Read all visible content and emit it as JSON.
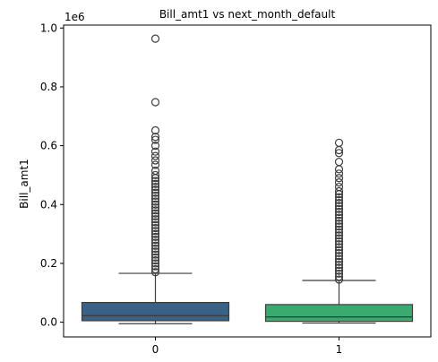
{
  "chart_data": {
    "type": "box",
    "title": "Bill_amt1 vs next_month_default",
    "xlabel": "",
    "ylabel": "Bill_amt1",
    "y_offset_label": "1e6",
    "y_scale_factor": 1000000,
    "ylim": [
      -0.05,
      1.01
    ],
    "yticks": [
      0.0,
      0.2,
      0.4,
      0.6,
      0.8,
      1.0
    ],
    "ytick_labels": [
      "0.0",
      "0.2",
      "0.4",
      "0.6",
      "0.8",
      "1.0"
    ],
    "grid": false,
    "categories": [
      "0",
      "1"
    ],
    "colors": [
      "#3a6186",
      "#3aaa6e"
    ],
    "boxes": [
      {
        "category": "0",
        "whisker_low": -0.005,
        "q1": 0.005,
        "median": 0.022,
        "q3": 0.067,
        "whisker_high": 0.166,
        "outliers": [
          0.17,
          0.18,
          0.19,
          0.2,
          0.21,
          0.22,
          0.23,
          0.24,
          0.25,
          0.26,
          0.27,
          0.28,
          0.29,
          0.3,
          0.31,
          0.32,
          0.33,
          0.34,
          0.35,
          0.36,
          0.37,
          0.38,
          0.39,
          0.4,
          0.41,
          0.42,
          0.43,
          0.44,
          0.45,
          0.46,
          0.47,
          0.48,
          0.49,
          0.5,
          0.515,
          0.535,
          0.55,
          0.565,
          0.58,
          0.6,
          0.62,
          0.63,
          0.652,
          0.748,
          0.964
        ]
      },
      {
        "category": "1",
        "whisker_low": -0.003,
        "q1": 0.003,
        "median": 0.018,
        "q3": 0.06,
        "whisker_high": 0.142,
        "outliers": [
          0.145,
          0.155,
          0.165,
          0.175,
          0.185,
          0.195,
          0.205,
          0.215,
          0.225,
          0.235,
          0.245,
          0.255,
          0.265,
          0.275,
          0.285,
          0.295,
          0.305,
          0.315,
          0.325,
          0.335,
          0.345,
          0.355,
          0.365,
          0.375,
          0.385,
          0.395,
          0.405,
          0.415,
          0.425,
          0.435,
          0.445,
          0.46,
          0.475,
          0.49,
          0.505,
          0.52,
          0.545,
          0.575,
          0.585,
          0.61
        ]
      }
    ]
  }
}
